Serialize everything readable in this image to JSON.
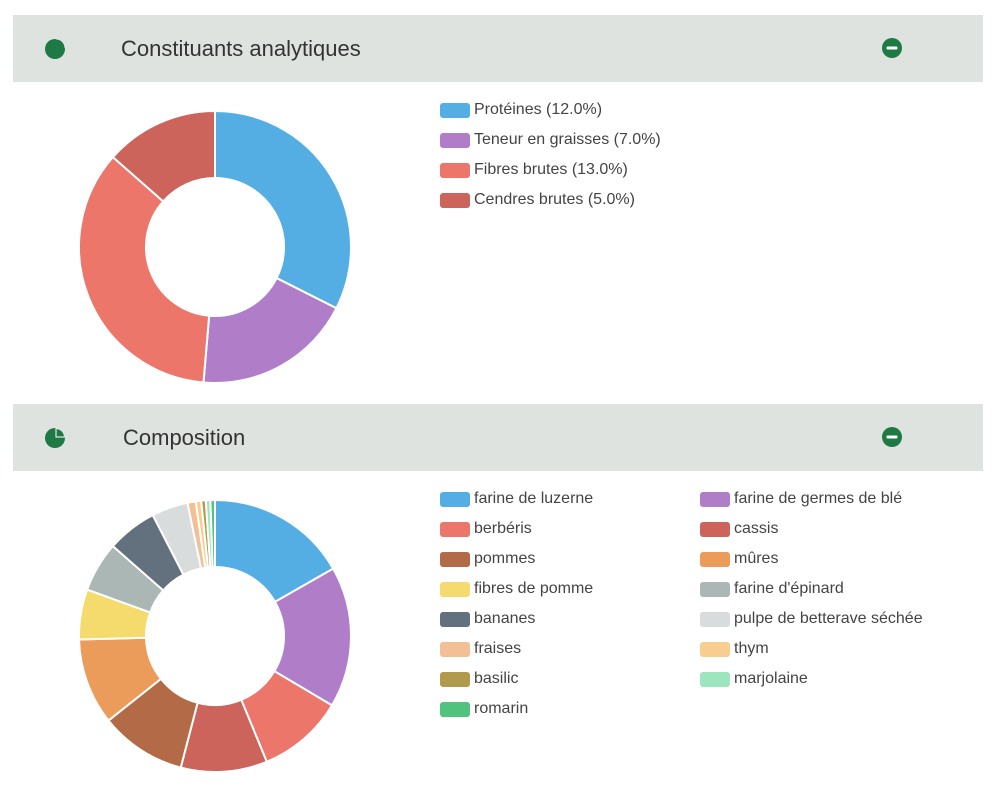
{
  "panels": [
    {
      "title": "Constituants analytiques",
      "icon": "pie-chart-icon",
      "collapse_icon": "minus-circle-icon"
    },
    {
      "title": "Composition",
      "icon": "pie-chart-icon",
      "collapse_icon": "minus-circle-icon"
    }
  ],
  "colors": {
    "header_bg": "#dfe3e0",
    "icon_green": "#1e7a45"
  },
  "chart_data": [
    {
      "type": "pie",
      "donut": true,
      "legend_position": "right",
      "series": [
        {
          "label": "Protéines (12.0%)",
          "value": 12.0,
          "color": "#54aee3"
        },
        {
          "label": "Teneur en graisses (7.0%)",
          "value": 7.0,
          "color": "#b07ec9"
        },
        {
          "label": "Fibres brutes (13.0%)",
          "value": 13.0,
          "color": "#ec766a"
        },
        {
          "label": "Cendres brutes (5.0%)",
          "value": 5.0,
          "color": "#cc645b"
        }
      ]
    },
    {
      "type": "pie",
      "donut": true,
      "legend_position": "right",
      "series": [
        {
          "label": "farine de luzerne",
          "value": 15.5,
          "color": "#54aee3"
        },
        {
          "label": "farine de germes de blé",
          "value": 15.5,
          "color": "#b07ec9"
        },
        {
          "label": "berbéris",
          "value": 9.5,
          "color": "#ec766a"
        },
        {
          "label": "cassis",
          "value": 9.5,
          "color": "#cc645b"
        },
        {
          "label": "pommes",
          "value": 9.5,
          "color": "#b36a47"
        },
        {
          "label": "mûres",
          "value": 9.5,
          "color": "#eb9c5b"
        },
        {
          "label": "fibres de pomme",
          "value": 5.5,
          "color": "#f5da6e"
        },
        {
          "label": "farine d'épinard",
          "value": 5.5,
          "color": "#aab7b5"
        },
        {
          "label": "bananes",
          "value": 5.5,
          "color": "#63717f"
        },
        {
          "label": "pulpe de betterave séchée",
          "value": 4.0,
          "color": "#d9dcdc"
        },
        {
          "label": "fraises",
          "value": 0.9,
          "color": "#f3bf96"
        },
        {
          "label": "thym",
          "value": 0.6,
          "color": "#f7ce90"
        },
        {
          "label": "basilic",
          "value": 0.5,
          "color": "#b09a4e"
        },
        {
          "label": "marjolaine",
          "value": 0.5,
          "color": "#9de5bf"
        },
        {
          "label": "romarin",
          "value": 0.5,
          "color": "#52c27e"
        }
      ]
    }
  ]
}
